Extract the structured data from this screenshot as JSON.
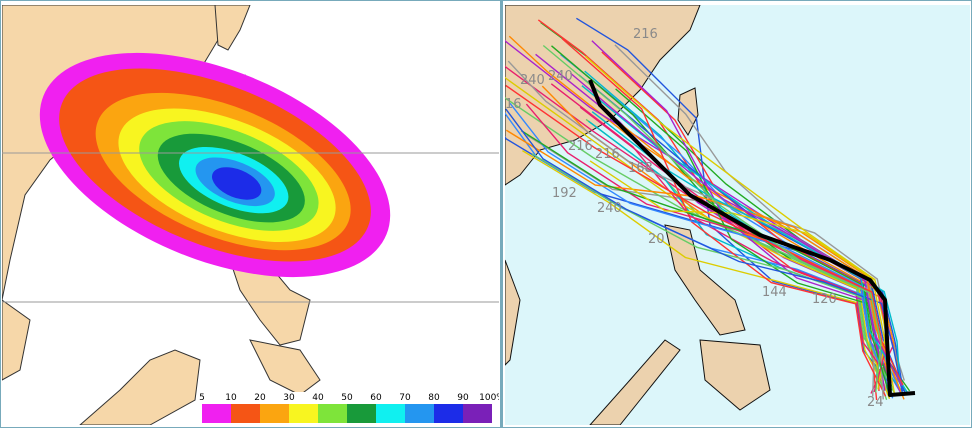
{
  "colorbar": {
    "labels": [
      "5",
      "10",
      "20",
      "30",
      "40",
      "50",
      "60",
      "70",
      "80",
      "90",
      "100%"
    ]
  },
  "track_labels": [
    "216",
    "240",
    "240",
    "16",
    "216",
    "216",
    "168",
    "192",
    "240",
    "20",
    "144",
    "120",
    "24"
  ]
}
